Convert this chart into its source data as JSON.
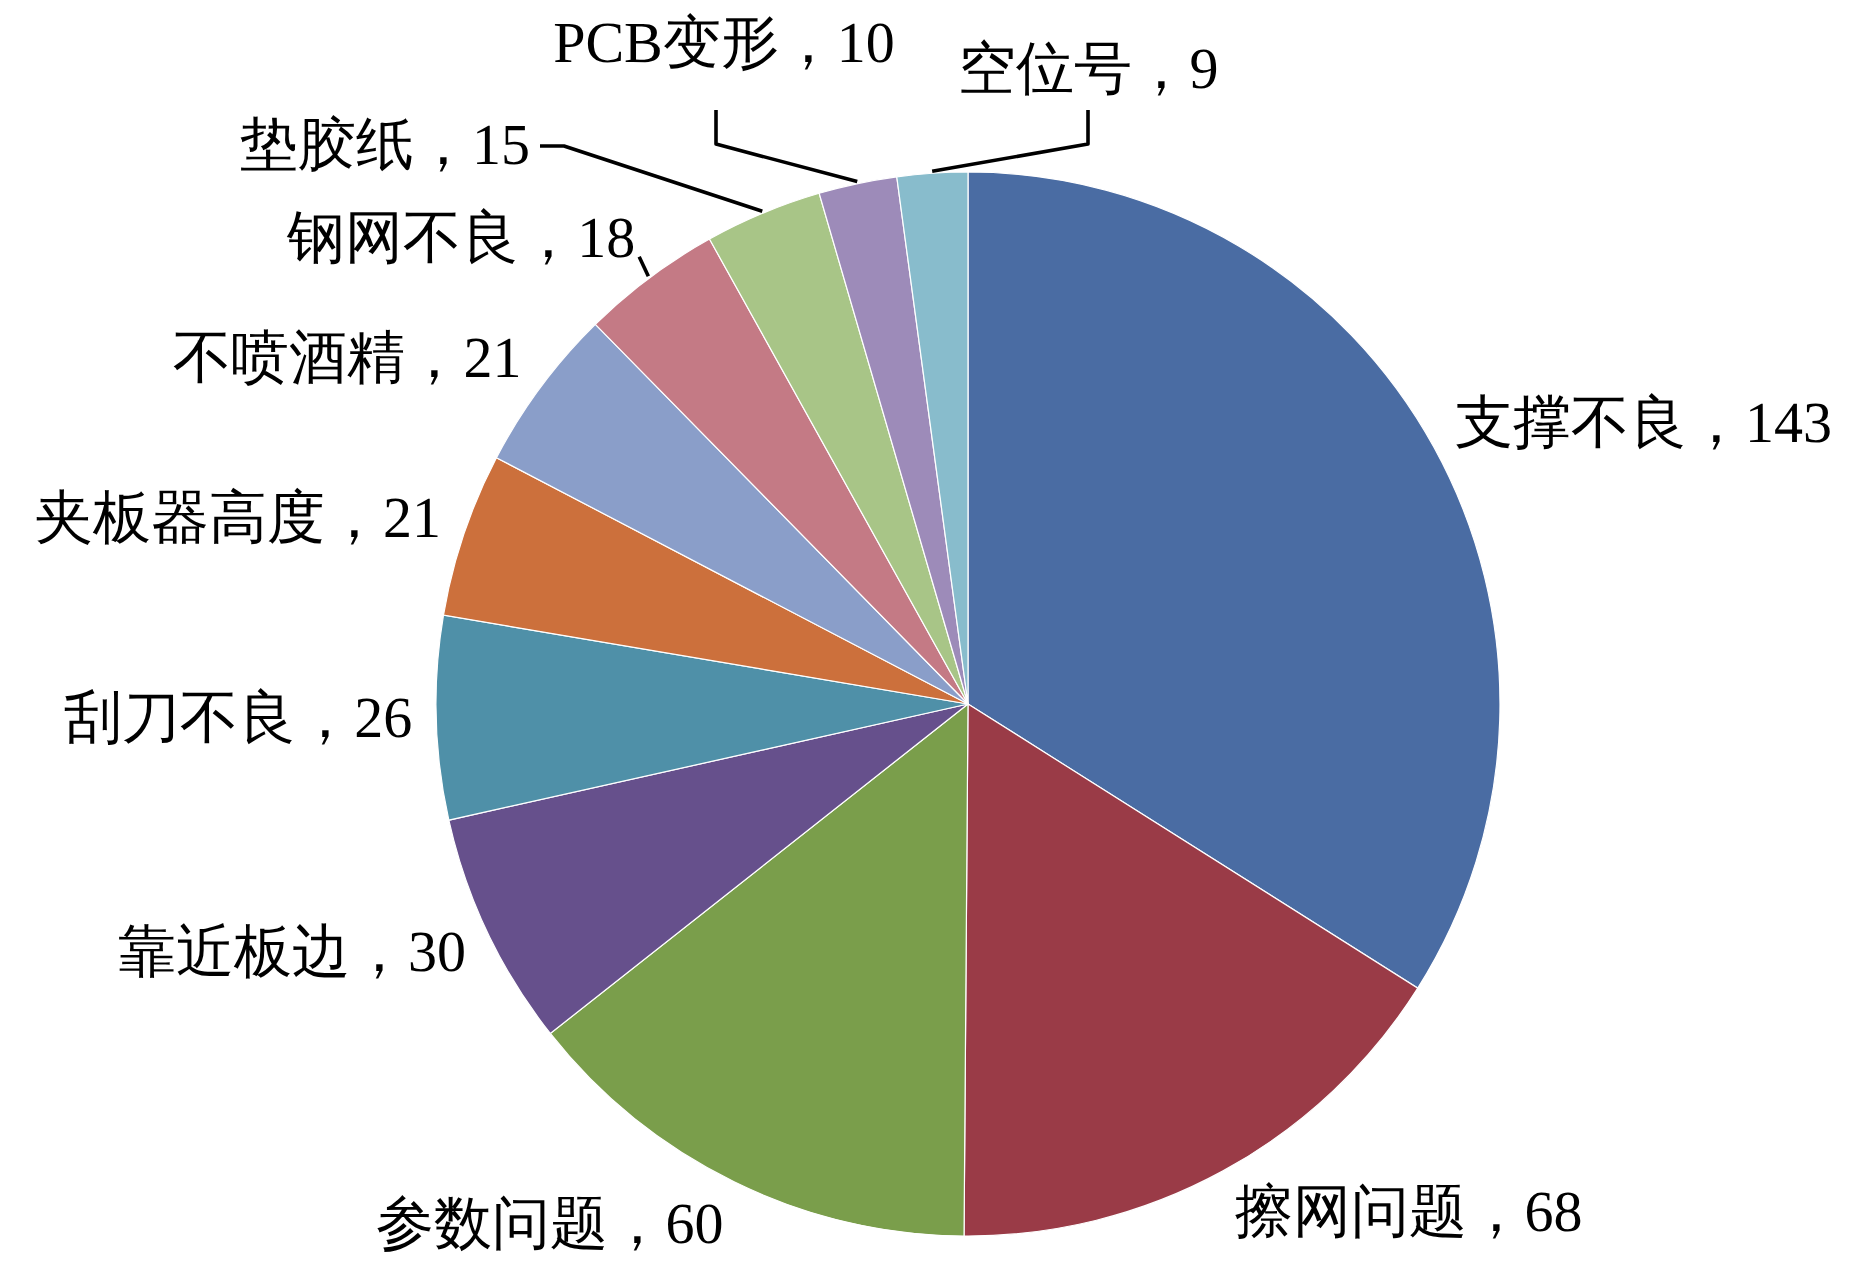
{
  "chart_data": {
    "type": "pie",
    "categories": [
      "支撑不良",
      "擦网问题",
      "参数问题",
      "靠近板边",
      "刮刀不良",
      "夹板器高度",
      "不喷酒精",
      "钢网不良",
      "垫胶纸",
      "PCB变形",
      "空位号"
    ],
    "values": [
      143,
      68,
      60,
      30,
      26,
      21,
      21,
      18,
      15,
      10,
      9
    ],
    "value_labels": [
      "，143",
      "，68",
      "，60",
      "，30",
      "，26",
      "，21",
      "，21",
      "，18",
      "，15",
      "，10",
      "，9"
    ],
    "colors": [
      "#4a6ca3",
      "#9a3b47",
      "#7a9e4b",
      "#66508c",
      "#4f90a8",
      "#cc703c",
      "#8a9ec9",
      "#c47a85",
      "#a8c587",
      "#9d8bb9",
      "#88bccc"
    ]
  }
}
